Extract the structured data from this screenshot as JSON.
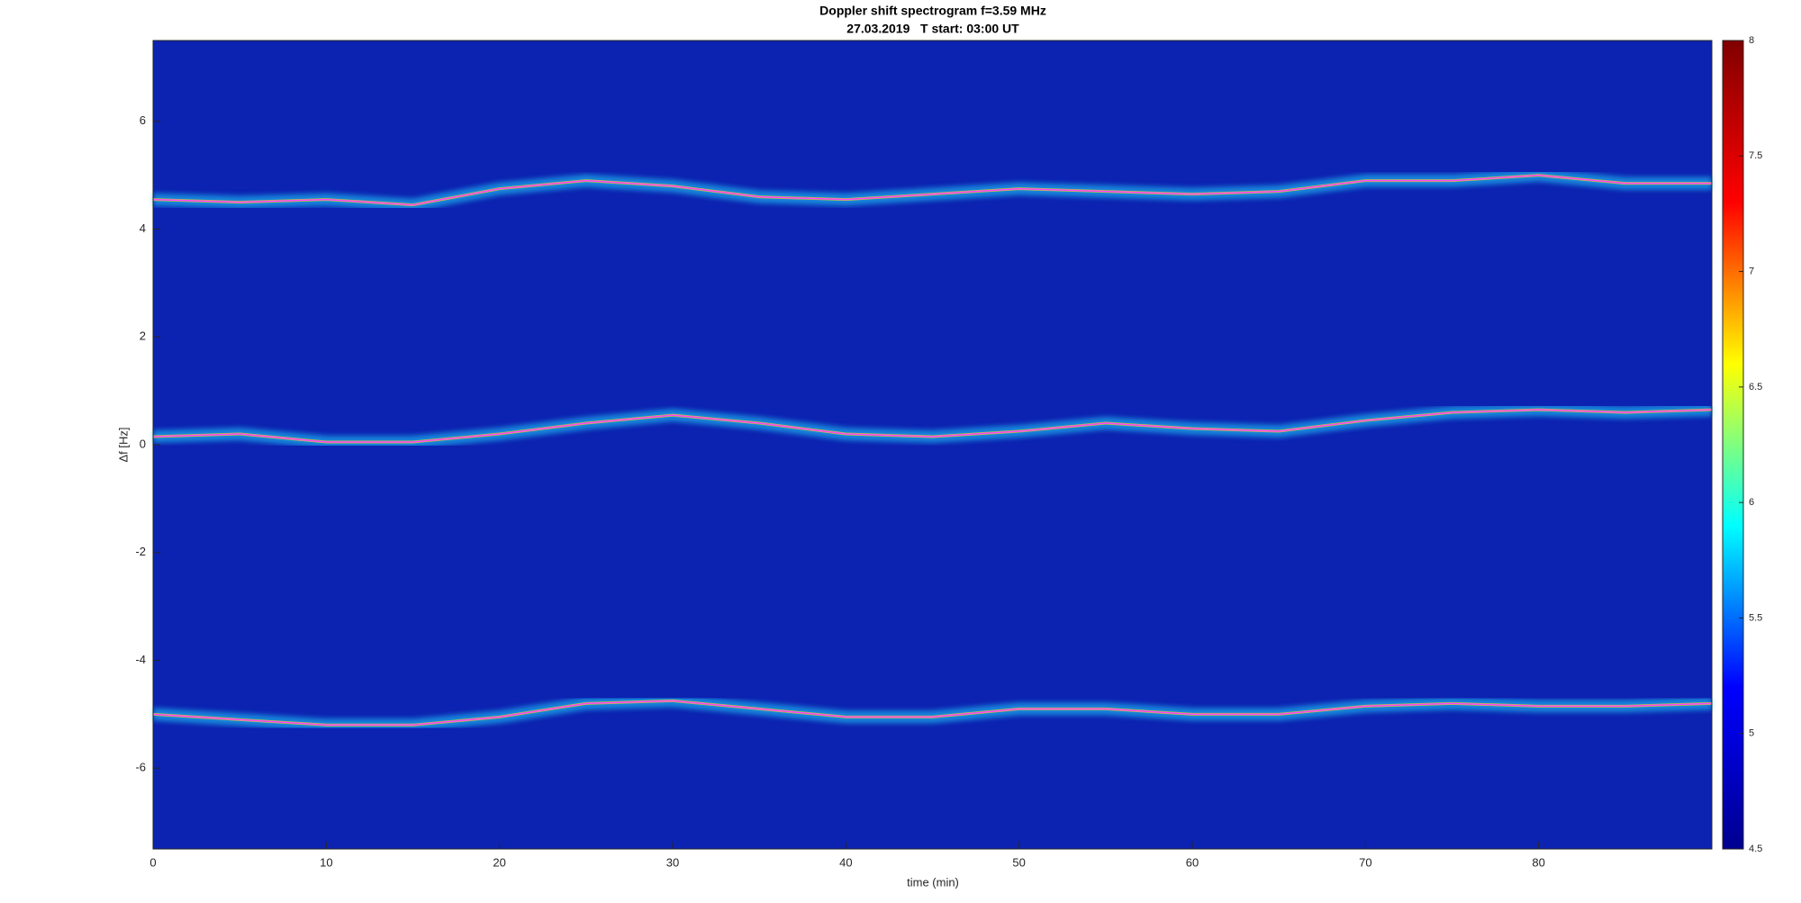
{
  "chart_data": {
    "type": "spectrogram",
    "title": "Doppler shift spectrogram f=3.59 MHz",
    "subtitle": "27.03.2019   T start: 03:00 UT",
    "xlabel": "time (min)",
    "ylabel": "Δf [Hz]",
    "xlim": [
      0,
      90
    ],
    "ylim": [
      -7.5,
      7.5
    ],
    "xticks": [
      0,
      10,
      20,
      30,
      40,
      50,
      60,
      70,
      80
    ],
    "yticks": [
      -6,
      -4,
      -2,
      0,
      2,
      4,
      6
    ],
    "background": "#0c22b0",
    "x": [
      0,
      5,
      10,
      15,
      20,
      25,
      30,
      35,
      40,
      45,
      50,
      55,
      60,
      65,
      70,
      75,
      80,
      85,
      90
    ],
    "series": [
      {
        "color": "#ff40ff",
        "values": [
          4.55,
          4.5,
          4.55,
          4.45,
          4.75,
          4.9,
          4.8,
          4.6,
          4.55,
          4.65,
          4.75,
          4.7,
          4.65,
          4.7,
          4.9,
          4.9,
          5.0,
          4.85,
          4.85
        ]
      },
      {
        "color": "#ff40ff",
        "values": [
          0.15,
          0.2,
          0.05,
          0.05,
          0.2,
          0.4,
          0.55,
          0.4,
          0.2,
          0.15,
          0.25,
          0.4,
          0.3,
          0.25,
          0.45,
          0.6,
          0.65,
          0.6,
          0.65
        ]
      },
      {
        "color": "#ff40ff",
        "values": [
          -5.0,
          -5.1,
          -5.2,
          -5.2,
          -5.05,
          -4.8,
          -4.75,
          -4.9,
          -5.05,
          -5.05,
          -4.9,
          -4.9,
          -5.0,
          -5.0,
          -4.85,
          -4.8,
          -4.85,
          -4.85,
          -4.8
        ]
      }
    ],
    "clim": [
      4.5,
      8
    ],
    "cticks": [
      4.5,
      5,
      5.5,
      6,
      6.5,
      7,
      7.5,
      8
    ],
    "colormap": [
      "#00008f",
      "#0000ff",
      "#00ffff",
      "#ffff00",
      "#ff0000",
      "#800000"
    ]
  }
}
